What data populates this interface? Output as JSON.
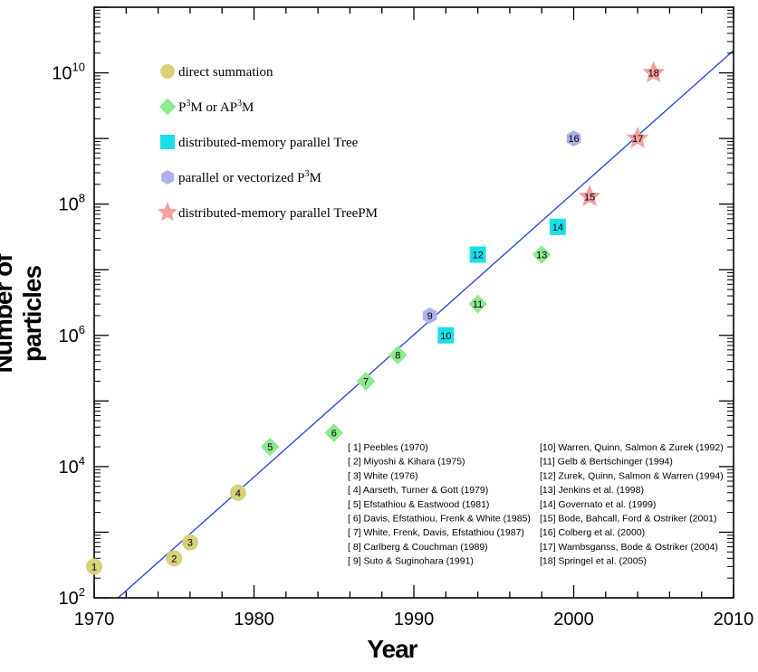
{
  "chart_data": {
    "type": "scatter",
    "xlabel": "Year",
    "ylabel": "Number of particles",
    "xlim": [
      1970,
      2010
    ],
    "ylim_log10": [
      2,
      11
    ],
    "y_scale": "log",
    "x_ticks": [
      "1970",
      "1980",
      "1990",
      "2000",
      "2010"
    ],
    "y_ticks": [
      {
        "base": "10",
        "exp": "2"
      },
      {
        "base": "10",
        "exp": "4"
      },
      {
        "base": "10",
        "exp": "6"
      },
      {
        "base": "10",
        "exp": "8"
      },
      {
        "base": "10",
        "exp": "10"
      }
    ],
    "legend_position": "top-left",
    "legend": [
      {
        "shape": "circle",
        "color": "#d8d07a",
        "parts": [
          {
            "t": "direct summation"
          }
        ]
      },
      {
        "shape": "diamond",
        "color": "#8ee88e",
        "parts": [
          {
            "t": "P"
          },
          {
            "t": "3",
            "sup": true
          },
          {
            "t": "M or AP"
          },
          {
            "t": "3",
            "sup": true
          },
          {
            "t": "M"
          }
        ]
      },
      {
        "shape": "square",
        "color": "#19e0e8",
        "parts": [
          {
            "t": "distributed-memory parallel Tree"
          }
        ]
      },
      {
        "shape": "hexagon",
        "color": "#b0b0ee",
        "parts": [
          {
            "t": "parallel or vectorized P"
          },
          {
            "t": "3",
            "sup": true
          },
          {
            "t": "M"
          }
        ]
      },
      {
        "shape": "star",
        "color": "#f4a0a0",
        "parts": [
          {
            "t": "distributed-memory parallel TreePM"
          }
        ]
      }
    ],
    "points": [
      {
        "label": "1",
        "year": 1970,
        "particles": 300,
        "shape": "circle"
      },
      {
        "label": "2",
        "year": 1975,
        "particles": 400,
        "shape": "circle"
      },
      {
        "label": "3",
        "year": 1976,
        "particles": 700,
        "shape": "circle"
      },
      {
        "label": "4",
        "year": 1979,
        "particles": 4000,
        "shape": "circle"
      },
      {
        "label": "5",
        "year": 1981,
        "particles": 20000,
        "shape": "diamond"
      },
      {
        "label": "6",
        "year": 1985,
        "particles": 32768,
        "shape": "diamond"
      },
      {
        "label": "7",
        "year": 1987,
        "particles": 200000,
        "shape": "diamond"
      },
      {
        "label": "8",
        "year": 1989,
        "particles": 500000,
        "shape": "diamond"
      },
      {
        "label": "9",
        "year": 1991,
        "particles": 2000000,
        "shape": "hexagon"
      },
      {
        "label": "10",
        "year": 1992,
        "particles": 1000000,
        "shape": "square"
      },
      {
        "label": "11",
        "year": 1994,
        "particles": 3000000,
        "shape": "diamond"
      },
      {
        "label": "12",
        "year": 1994,
        "particles": 17000000,
        "shape": "square"
      },
      {
        "label": "13",
        "year": 1998,
        "particles": 17000000,
        "shape": "diamond"
      },
      {
        "label": "14",
        "year": 1999,
        "particles": 45000000,
        "shape": "square"
      },
      {
        "label": "15",
        "year": 2001,
        "particles": 130000000,
        "shape": "star"
      },
      {
        "label": "16",
        "year": 2000,
        "particles": 1000000000,
        "shape": "hexagon"
      },
      {
        "label": "17",
        "year": 2004,
        "particles": 1000000000,
        "shape": "star"
      },
      {
        "label": "18",
        "year": 2005,
        "particles": 10000000000,
        "shape": "star"
      }
    ],
    "trend_line": {
      "x": [
        1971.5,
        2010
      ],
      "y": [
        100,
        22000000000
      ],
      "color": "#1f3fe0"
    },
    "references_left": [
      "[ 1] Peebles (1970)",
      "[ 2] Miyoshi & Kihara (1975)",
      "[ 3] White (1976)",
      "[ 4] Aarseth, Turner & Gott (1979)",
      "[ 5] Efstathiou & Eastwood (1981)",
      "[ 6] Davis, Efstathiou, Frenk & White (1985)",
      "[ 7] White, Frenk, Davis, Efstathiou (1987)",
      "[ 8] Carlberg & Couchman (1989)",
      "[ 9] Suto & Suginohara (1991)"
    ],
    "references_right": [
      "[10] Warren, Quinn, Salmon & Zurek (1992)",
      "[11] Gelb & Bertschinger (1994)",
      "[12] Zurek, Quinn, Salmon & Warren (1994)",
      "[13] Jenkins et al. (1998)",
      "[14] Governato et al. (1999)",
      "[15] Bode, Bahcall, Ford & Ostriker (2001)",
      "[16] Colberg et al. (2000)",
      "[17] Wambsganss, Bode & Ostriker (2004)",
      "[18] Springel et al. (2005)"
    ]
  }
}
